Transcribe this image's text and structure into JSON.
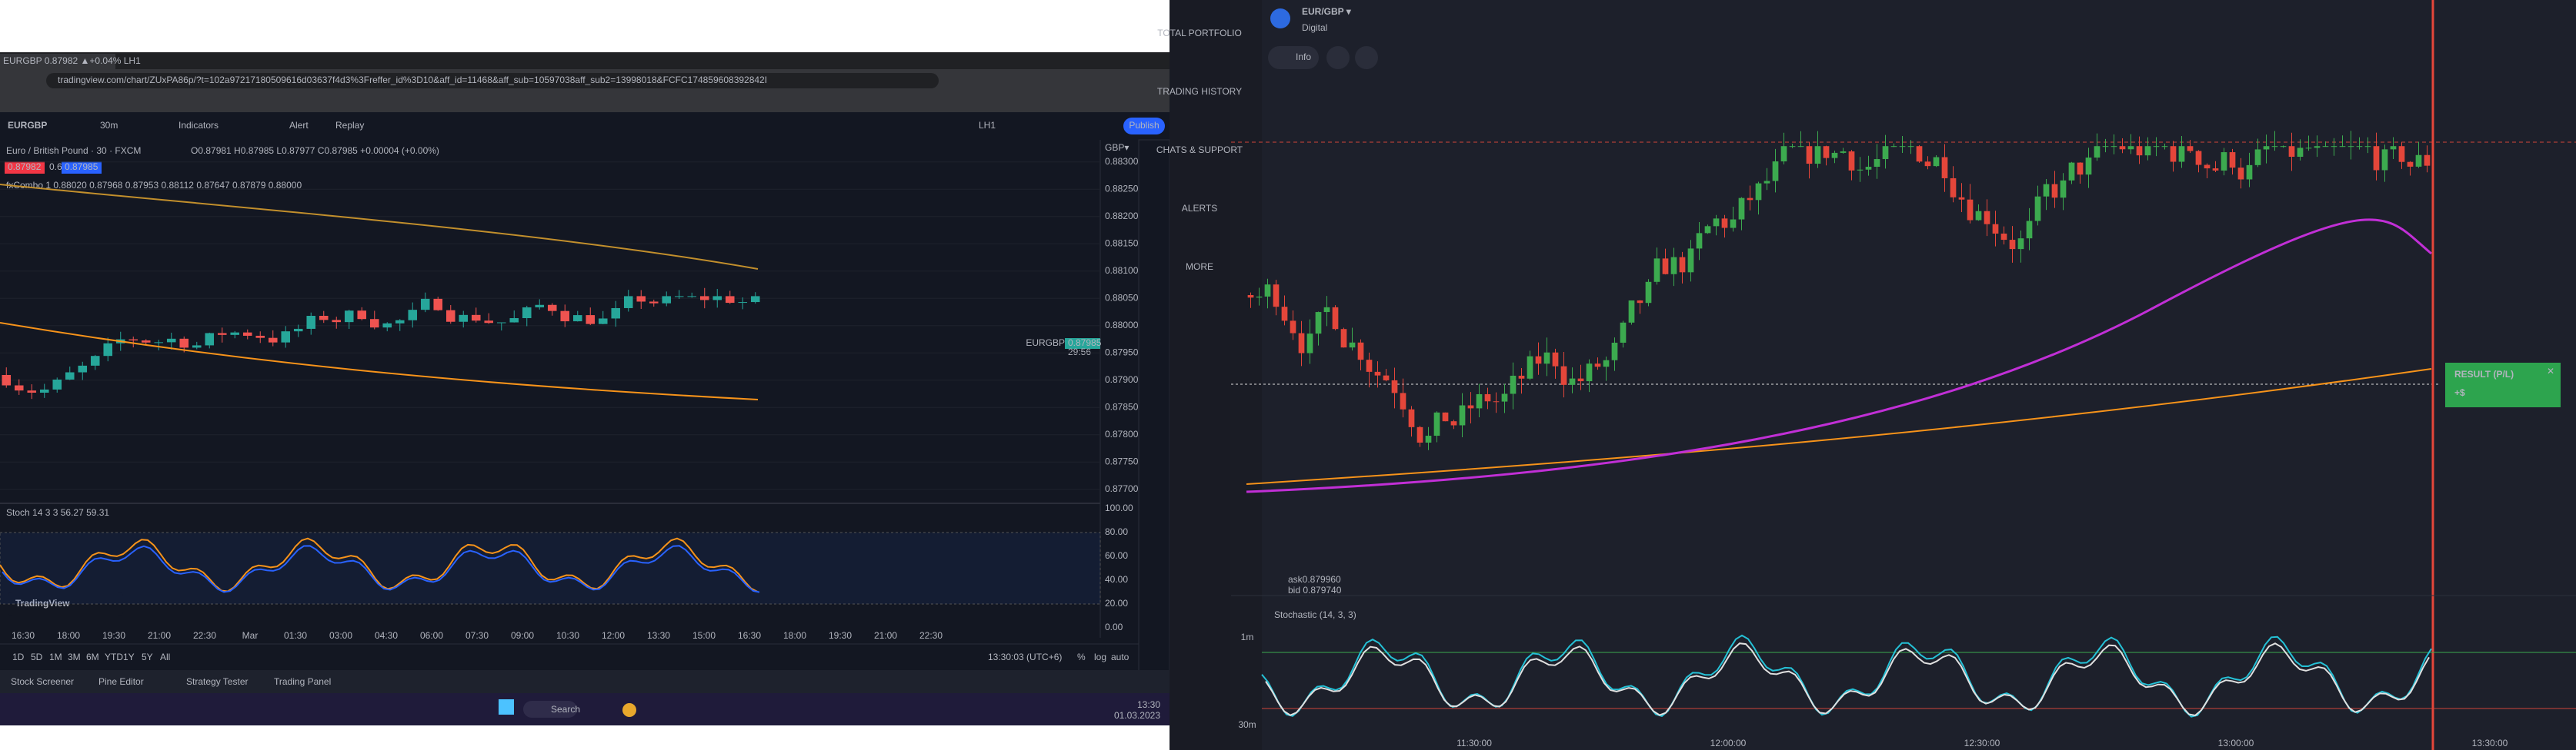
{
  "left": {
    "tab": "EURGBP 0.87982 ▲+0.04% LH1",
    "url": "tradingview.com/chart/ZUxPA86p/?t=102a97217180509616d03637f4d3%3Freffer_id%3D10&aff_id=11468&aff_sub=10597038aff_sub2=13998018&FCFC174859608392842I",
    "toolbar": {
      "symbol": "EURGBP",
      "interval": "30m",
      "indicators": "Indicators",
      "alert": "Alert",
      "replay": "Replay",
      "layout": "LH1",
      "publish": "Publish"
    },
    "legend": {
      "title": "Euro / British Pound · 30 · FXCM",
      "ohlc": "O0.87981 H0.87985 L0.87977 C0.87985 +0.00004 (+0.00%)",
      "bid": "0.87982",
      "spread": "0.6",
      "ask": "0.87985",
      "indicator": "fxCombo 1  0.88020  0.87968  0.87953  0.88112  0.87647  0.87879  0.88000"
    },
    "currency": "GBP▾",
    "price_ticks": [
      "0.88300",
      "0.88250",
      "0.88200",
      "0.88150",
      "0.88100",
      "0.88050",
      "0.88000",
      "0.87950",
      "0.87900",
      "0.87850",
      "0.87800",
      "0.87750",
      "0.87700"
    ],
    "price_label": {
      "symbol": "EURGBP",
      "price": "0.87985",
      "countdown": "29:56"
    },
    "stoch_legend": "Stoch 14 3 3  56.27  59.31",
    "stoch_ticks": [
      "100.00",
      "80.00",
      "60.00",
      "40.00",
      "20.00",
      "0.00"
    ],
    "time_ticks": [
      "16:30",
      "18:00",
      "19:30",
      "21:00",
      "22:30",
      "Mar",
      "01:30",
      "03:00",
      "04:30",
      "06:00",
      "07:30",
      "09:00",
      "10:30",
      "12:00",
      "13:30",
      "15:00",
      "16:30",
      "18:00",
      "19:30",
      "21:00",
      "22:30"
    ],
    "ranges": [
      "1D",
      "5D",
      "1M",
      "3M",
      "6M",
      "YTD",
      "1Y",
      "5Y",
      "All"
    ],
    "clock": "13:30:03 (UTC+6)",
    "scale_opts": [
      "%",
      "log",
      "auto"
    ],
    "panels": [
      "Stock Screener",
      "Pine Editor",
      "Strategy Tester",
      "Trading Panel"
    ],
    "logo": "TradingView",
    "taskbar": {
      "search": "Search",
      "time": "13:30",
      "date": "01.03.2023"
    }
  },
  "right": {
    "sidebar": [
      "TOTAL PORTFOLIO",
      "TRADING HISTORY",
      "CHATS & SUPPORT",
      "ALERTS",
      "MORE"
    ],
    "asset": "EUR/GBP ▾",
    "asset_type": "Digital",
    "info": "Info",
    "result": {
      "title": "RESULT (P/L)",
      "value": "+$"
    },
    "ask": "ask0.879960",
    "bid": "bid 0.879740",
    "stoch": "Stochastic (14, 3, 3)",
    "timeframes": [
      "1m",
      "30m"
    ],
    "time_ticks": [
      "11:30:00",
      "12:00:00",
      "12:30:00",
      "13:00:00",
      "13:30:00"
    ]
  }
}
